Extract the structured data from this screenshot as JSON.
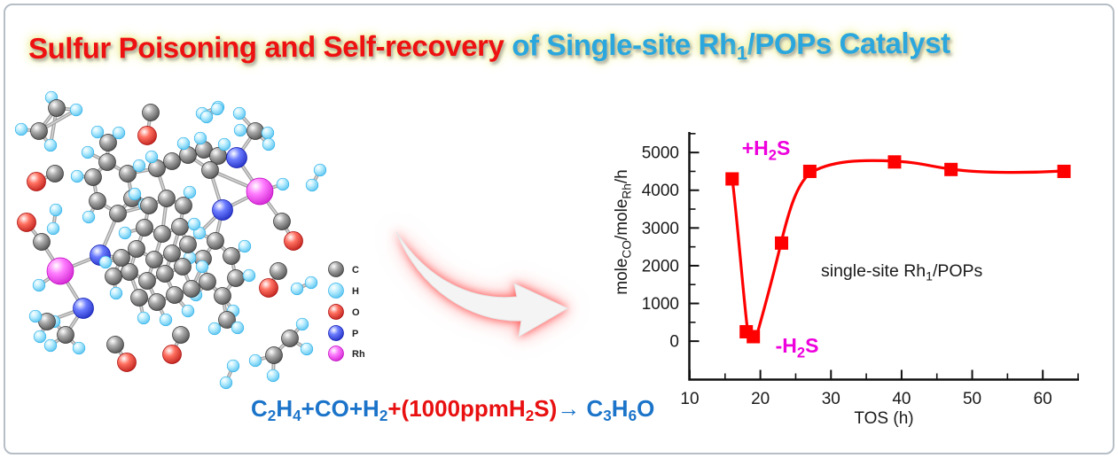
{
  "title": {
    "segments": [
      {
        "t": "Sulfur Poisoning and Self-recovery ",
        "c": "r"
      },
      {
        "t": "of Single-site Rh",
        "c": "b"
      },
      {
        "t": "1",
        "c": "b",
        "sub": true
      },
      {
        "t": "/POPs Catalyst",
        "c": "b"
      }
    ],
    "colors": {
      "r": "#ee1111",
      "b": "#2ba7de"
    },
    "glow_color": "#efefa0"
  },
  "equation": {
    "segments": [
      {
        "t": "C",
        "c": "b"
      },
      {
        "t": "2",
        "c": "b",
        "sub": true
      },
      {
        "t": "H",
        "c": "b"
      },
      {
        "t": "4",
        "c": "b",
        "sub": true
      },
      {
        "t": "+CO+H",
        "c": "b"
      },
      {
        "t": "2",
        "c": "b",
        "sub": true
      },
      {
        "t": "+(1000ppmH",
        "c": "r"
      },
      {
        "t": "2",
        "c": "r",
        "sub": true
      },
      {
        "t": "S)",
        "c": "r"
      },
      {
        "t": "→",
        "c": "b"
      },
      {
        "t": " C",
        "c": "b"
      },
      {
        "t": "3",
        "c": "b",
        "sub": true
      },
      {
        "t": "H",
        "c": "b"
      },
      {
        "t": "6",
        "c": "b",
        "sub": true
      },
      {
        "t": "O",
        "c": "b"
      }
    ],
    "colors": {
      "b": "#1b74c9",
      "r": "#e81010"
    }
  },
  "molecule": {
    "legend": {
      "items": [
        {
          "el": "C",
          "label": "C"
        },
        {
          "el": "H",
          "label": "H"
        },
        {
          "el": "O",
          "label": "O"
        },
        {
          "el": "P",
          "label": "P"
        },
        {
          "el": "Rh",
          "label": "Rh"
        }
      ]
    },
    "colors": {
      "C": [
        "#a9a9a9",
        "#2e2e2e"
      ],
      "H": [
        "#bdeeff",
        "#2fb1e8"
      ],
      "O": [
        "#ff7060",
        "#a50000"
      ],
      "P": [
        "#6b7cff",
        "#0712ad"
      ],
      "Rh": [
        "#ff7dff",
        "#bf00bf"
      ]
    },
    "atoms": [
      [
        "H",
        58,
        110
      ],
      [
        "C",
        64,
        122
      ],
      [
        "H",
        86,
        124
      ],
      [
        "C",
        44,
        148
      ],
      [
        "H",
        24,
        146
      ],
      [
        "H",
        57,
        164
      ],
      [
        "C",
        170,
        127
      ],
      [
        "O",
        166,
        153
      ],
      [
        "H",
        228,
        128
      ],
      [
        "H",
        246,
        121
      ],
      [
        "C",
        62,
        196
      ],
      [
        "O",
        41,
        205
      ],
      [
        "H",
        63,
        237
      ],
      [
        "H",
        60,
        258
      ],
      [
        "O",
        30,
        251
      ],
      [
        "C",
        47,
        273
      ],
      [
        "Rh",
        68,
        306
      ],
      [
        "H",
        44,
        322
      ],
      [
        "P",
        113,
        288
      ],
      [
        "P",
        94,
        348
      ],
      [
        "C",
        74,
        378
      ],
      [
        "H",
        61,
        363
      ],
      [
        "H",
        57,
        390
      ],
      [
        "H",
        89,
        393
      ],
      [
        "C",
        53,
        363
      ],
      [
        "H",
        40,
        357
      ],
      [
        "H",
        45,
        380
      ],
      [
        "C",
        121,
        183
      ],
      [
        "C",
        105,
        200
      ],
      [
        "C",
        110,
        227
      ],
      [
        "C",
        133,
        241
      ],
      [
        "C",
        149,
        224
      ],
      [
        "C",
        144,
        196
      ],
      [
        "H",
        99,
        172
      ],
      [
        "H",
        87,
        199
      ],
      [
        "H",
        100,
        245
      ],
      [
        "H",
        163,
        231
      ],
      [
        "H",
        157,
        187
      ],
      [
        "C",
        122,
        161
      ],
      [
        "H",
        110,
        149
      ],
      [
        "H",
        134,
        150
      ],
      [
        "C",
        177,
        190
      ],
      [
        "C",
        194,
        182
      ],
      [
        "C",
        212,
        175
      ],
      [
        "C",
        230,
        169
      ],
      [
        "C",
        246,
        176
      ],
      [
        "C",
        237,
        192
      ],
      [
        "H",
        171,
        177
      ],
      [
        "H",
        207,
        162
      ],
      [
        "H",
        226,
        156
      ],
      [
        "H",
        253,
        163
      ],
      [
        "P",
        267,
        178
      ],
      [
        "Rh",
        293,
        216
      ],
      [
        "H",
        319,
        208
      ],
      [
        "C",
        318,
        250
      ],
      [
        "O",
        331,
        272
      ],
      [
        "C",
        288,
        148
      ],
      [
        "H",
        271,
        147
      ],
      [
        "H",
        302,
        150
      ],
      [
        "H",
        303,
        163
      ],
      [
        "H",
        245,
        123
      ],
      [
        "H",
        233,
        132
      ],
      [
        "H",
        270,
        128
      ],
      [
        "P",
        251,
        237
      ],
      [
        "C",
        243,
        272
      ],
      [
        "C",
        229,
        292
      ],
      [
        "C",
        234,
        318
      ],
      [
        "C",
        251,
        334
      ],
      [
        "C",
        266,
        314
      ],
      [
        "C",
        261,
        289
      ],
      [
        "H",
        214,
        291
      ],
      [
        "H",
        221,
        333
      ],
      [
        "H",
        263,
        351
      ],
      [
        "H",
        281,
        311
      ],
      [
        "H",
        276,
        278
      ],
      [
        "H",
        225,
        263
      ],
      [
        "C",
        256,
        361
      ],
      [
        "H",
        242,
        371
      ],
      [
        "H",
        268,
        370
      ],
      [
        "C",
        168,
        232
      ],
      [
        "C",
        188,
        224
      ],
      [
        "C",
        207,
        232
      ],
      [
        "C",
        163,
        257
      ],
      [
        "C",
        183,
        264
      ],
      [
        "C",
        203,
        256
      ],
      [
        "C",
        154,
        281
      ],
      [
        "C",
        174,
        293
      ],
      [
        "C",
        194,
        286
      ],
      [
        "C",
        146,
        307
      ],
      [
        "C",
        166,
        317
      ],
      [
        "C",
        186,
        309
      ],
      [
        "C",
        206,
        301
      ],
      [
        "C",
        157,
        336
      ],
      [
        "C",
        177,
        341
      ],
      [
        "C",
        197,
        333
      ],
      [
        "C",
        216,
        326
      ],
      [
        "C",
        137,
        291
      ],
      [
        "C",
        128,
        312
      ],
      [
        "C",
        212,
        276
      ],
      [
        "H",
        152,
        219
      ],
      [
        "H",
        214,
        217
      ],
      [
        "H",
        141,
        263
      ],
      [
        "H",
        219,
        253
      ],
      [
        "H",
        131,
        331
      ],
      [
        "H",
        162,
        359
      ],
      [
        "H",
        187,
        361
      ],
      [
        "H",
        212,
        351
      ],
      [
        "H",
        228,
        301
      ],
      [
        "H",
        119,
        296
      ],
      [
        "C",
        314,
        306
      ],
      [
        "O",
        303,
        325
      ],
      [
        "H",
        335,
        326
      ],
      [
        "H",
        351,
        319
      ],
      [
        "H",
        352,
        209
      ],
      [
        "H",
        361,
        192
      ],
      [
        "C",
        309,
        401
      ],
      [
        "C",
        327,
        382
      ],
      [
        "H",
        288,
        407
      ],
      [
        "H",
        308,
        424
      ],
      [
        "H",
        341,
        366
      ],
      [
        "H",
        346,
        394
      ],
      [
        "H",
        263,
        413
      ],
      [
        "H",
        255,
        432
      ],
      [
        "C",
        130,
        389
      ],
      [
        "O",
        143,
        409
      ],
      [
        "C",
        204,
        378
      ],
      [
        "O",
        194,
        400
      ]
    ],
    "bonds": [
      [
        0,
        1
      ],
      [
        1,
        2
      ],
      [
        1,
        3
      ],
      [
        3,
        4
      ],
      [
        3,
        5
      ],
      [
        1,
        5
      ],
      [
        2,
        3
      ],
      [
        6,
        7
      ],
      [
        8,
        9
      ],
      [
        10,
        11
      ],
      [
        12,
        13
      ],
      [
        14,
        15
      ],
      [
        15,
        16
      ],
      [
        16,
        17
      ],
      [
        16,
        18
      ],
      [
        16,
        19
      ],
      [
        19,
        20
      ],
      [
        20,
        21
      ],
      [
        20,
        22
      ],
      [
        20,
        23
      ],
      [
        19,
        24
      ],
      [
        24,
        25
      ],
      [
        24,
        26
      ],
      [
        27,
        28
      ],
      [
        28,
        29
      ],
      [
        29,
        30
      ],
      [
        30,
        31
      ],
      [
        31,
        32
      ],
      [
        32,
        27
      ],
      [
        27,
        33
      ],
      [
        28,
        34
      ],
      [
        29,
        35
      ],
      [
        31,
        36
      ],
      [
        32,
        37
      ],
      [
        38,
        27
      ],
      [
        38,
        39
      ],
      [
        38,
        40
      ],
      [
        41,
        42
      ],
      [
        42,
        43
      ],
      [
        43,
        44
      ],
      [
        44,
        45
      ],
      [
        45,
        46
      ],
      [
        46,
        43
      ],
      [
        41,
        47
      ],
      [
        43,
        48
      ],
      [
        44,
        49
      ],
      [
        45,
        50
      ],
      [
        41,
        32
      ],
      [
        41,
        80
      ],
      [
        45,
        51
      ],
      [
        51,
        52
      ],
      [
        51,
        56
      ],
      [
        52,
        53
      ],
      [
        52,
        54
      ],
      [
        54,
        55
      ],
      [
        56,
        57
      ],
      [
        56,
        58
      ],
      [
        56,
        59
      ],
      [
        56,
        62
      ],
      [
        60,
        61
      ],
      [
        52,
        46
      ],
      [
        52,
        63
      ],
      [
        63,
        46
      ],
      [
        63,
        64
      ],
      [
        63,
        98
      ],
      [
        64,
        65
      ],
      [
        65,
        66
      ],
      [
        66,
        67
      ],
      [
        67,
        68
      ],
      [
        68,
        69
      ],
      [
        69,
        64
      ],
      [
        65,
        70
      ],
      [
        66,
        71
      ],
      [
        67,
        72
      ],
      [
        68,
        73
      ],
      [
        69,
        74
      ],
      [
        64,
        75
      ],
      [
        67,
        76
      ],
      [
        76,
        77
      ],
      [
        76,
        78
      ],
      [
        79,
        80
      ],
      [
        80,
        81
      ],
      [
        79,
        82
      ],
      [
        80,
        83
      ],
      [
        81,
        84
      ],
      [
        82,
        83
      ],
      [
        83,
        84
      ],
      [
        82,
        85
      ],
      [
        83,
        86
      ],
      [
        84,
        87
      ],
      [
        85,
        86
      ],
      [
        86,
        87
      ],
      [
        85,
        88
      ],
      [
        86,
        89
      ],
      [
        87,
        90
      ],
      [
        88,
        89
      ],
      [
        89,
        90
      ],
      [
        90,
        91
      ],
      [
        88,
        92
      ],
      [
        89,
        93
      ],
      [
        90,
        94
      ],
      [
        91,
        95
      ],
      [
        92,
        93
      ],
      [
        93,
        94
      ],
      [
        94,
        95
      ],
      [
        96,
        85
      ],
      [
        96,
        97
      ],
      [
        97,
        88
      ],
      [
        98,
        87
      ],
      [
        98,
        84
      ],
      [
        79,
        99
      ],
      [
        81,
        100
      ],
      [
        82,
        101
      ],
      [
        84,
        102
      ],
      [
        97,
        103
      ],
      [
        92,
        104
      ],
      [
        93,
        105
      ],
      [
        94,
        106
      ],
      [
        95,
        107
      ],
      [
        96,
        108
      ],
      [
        18,
        96
      ],
      [
        18,
        30
      ],
      [
        30,
        79
      ],
      [
        109,
        110
      ],
      [
        111,
        112
      ],
      [
        113,
        114
      ],
      [
        115,
        116
      ],
      [
        115,
        117
      ],
      [
        115,
        118
      ],
      [
        116,
        119
      ],
      [
        116,
        120
      ],
      [
        121,
        122
      ],
      [
        123,
        124
      ],
      [
        125,
        126
      ]
    ]
  },
  "chart_data": {
    "type": "line",
    "xlabel": "TOS (h)",
    "ylabel": "mole_CO/mole_Rh/h",
    "ylabel_segments": [
      {
        "t": "mole"
      },
      {
        "t": "CO",
        "sub": true
      },
      {
        "t": "/mole"
      },
      {
        "t": "Rh",
        "sub": true
      },
      {
        "t": "/h"
      }
    ],
    "xlim": [
      10,
      65
    ],
    "ylim": [
      -1030,
      5520
    ],
    "xticks": [
      10,
      20,
      30,
      40,
      50,
      60
    ],
    "xticks_minor": [
      15,
      25,
      35,
      45,
      55,
      65
    ],
    "yticks": [
      0,
      1000,
      2000,
      3000,
      4000,
      5000
    ],
    "yticks_minor": [
      500,
      1500,
      2500,
      3500,
      4500,
      5500
    ],
    "grid": false,
    "legend_position": "none",
    "series": [
      {
        "name": "single-site Rh1/POPs",
        "color": "#ff0000",
        "marker": "square",
        "points": [
          [
            16,
            4300
          ],
          [
            18,
            250
          ],
          [
            19,
            120
          ],
          [
            23,
            2600
          ],
          [
            27,
            4500
          ],
          [
            39,
            4750
          ],
          [
            47,
            4550
          ],
          [
            63,
            4500
          ]
        ]
      }
    ],
    "annotations": [
      {
        "id": "plus_h2s",
        "segments": [
          {
            "t": "+H"
          },
          {
            "t": "2",
            "sub": true
          },
          {
            "t": "S"
          }
        ],
        "color": "#ee00dd"
      },
      {
        "id": "minus_h2s",
        "segments": [
          {
            "t": "-H"
          },
          {
            "t": "2",
            "sub": true
          },
          {
            "t": "S"
          }
        ],
        "color": "#ee00dd"
      },
      {
        "id": "series_label",
        "segments": [
          {
            "t": "single-site Rh"
          },
          {
            "t": "1",
            "sub": true
          },
          {
            "t": "/POPs"
          }
        ],
        "color": "#1a1a1a"
      }
    ]
  }
}
